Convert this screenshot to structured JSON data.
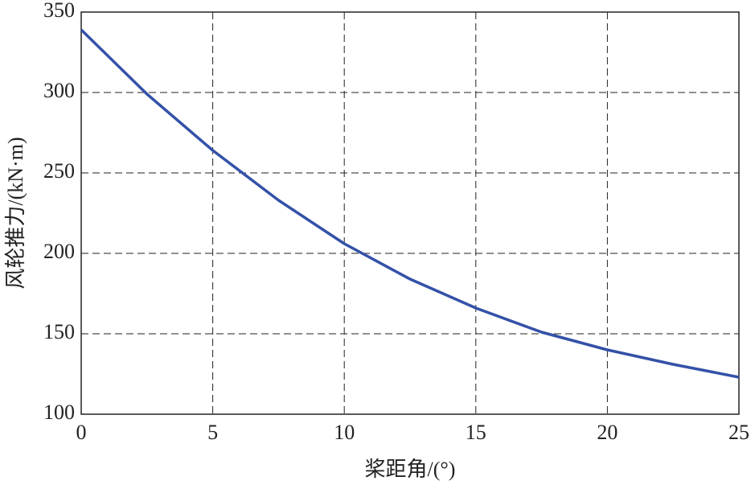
{
  "chart_data": {
    "type": "line",
    "x_label": "桨距角/(°)",
    "y_label": "风轮推力/(kN·m)",
    "x": [
      0,
      2.5,
      5,
      7.5,
      10,
      12.5,
      15,
      17.5,
      20,
      22.5,
      25
    ],
    "series": [
      {
        "color": "#3451a8",
        "values": [
          339,
          299,
          264,
          233,
          206,
          184,
          166,
          151,
          140,
          131,
          123
        ]
      }
    ],
    "xlim": [
      0,
      25
    ],
    "xticks": [
      0,
      5,
      10,
      15,
      20,
      25
    ],
    "ylim": [
      100,
      350
    ],
    "yticks": [
      100,
      150,
      200,
      250,
      300,
      350
    ],
    "grid": true
  }
}
